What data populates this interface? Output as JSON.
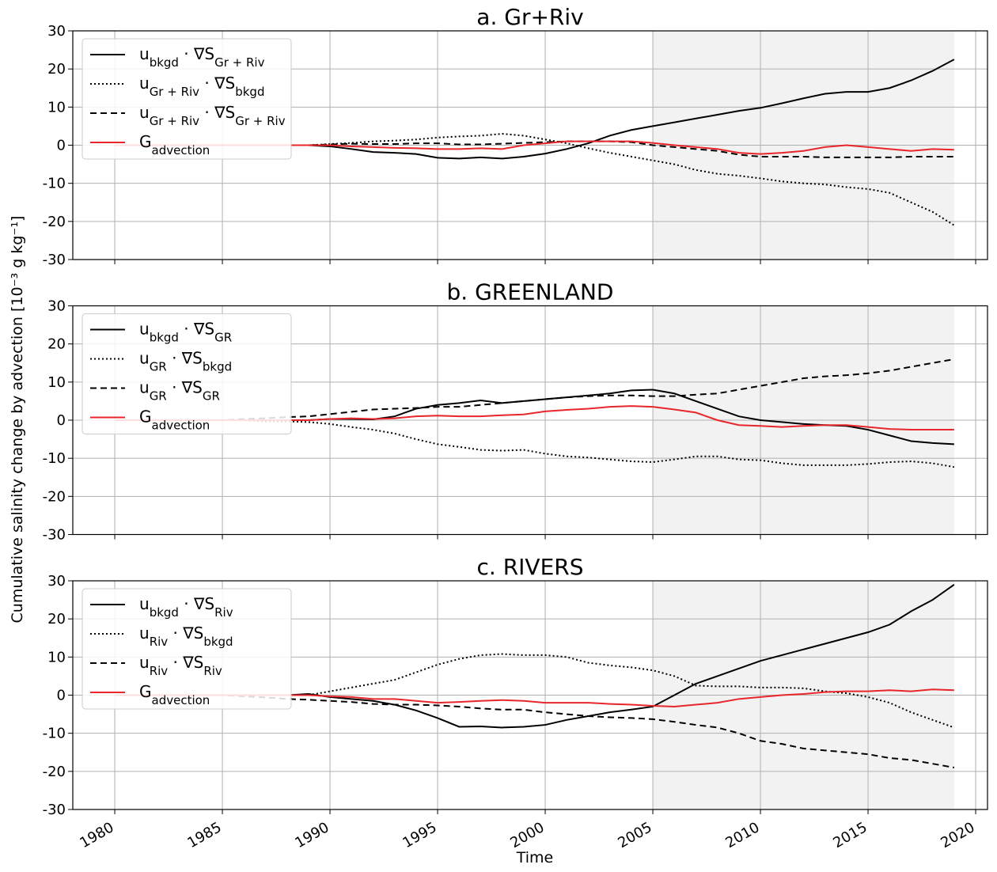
{
  "figure": {
    "ylabel": "Cumulative salinity change by advection [10⁻³ g kg⁻¹]",
    "xlabel": "Time"
  },
  "chart_data": [
    {
      "type": "line",
      "title": "a. Gr+Riv",
      "xlim": [
        1978.05,
        2020.55
      ],
      "xticks": [
        1980,
        1985,
        1990,
        1995,
        2000,
        2005,
        2010,
        2015,
        2020
      ],
      "ylim": [
        -30,
        30
      ],
      "yticks": [
        -30,
        -20,
        -10,
        0,
        10,
        20,
        30
      ],
      "grid": true,
      "legend": "upper left",
      "shade": [
        2005,
        2019
      ],
      "shade_color": "#f2f2f2",
      "x": [
        1980,
        1981,
        1982,
        1983,
        1984,
        1985,
        1986,
        1987,
        1988,
        1989,
        1990,
        1991,
        1992,
        1993,
        1994,
        1995,
        1996,
        1997,
        1998,
        1999,
        2000,
        2001,
        2002,
        2003,
        2004,
        2005,
        2006,
        2007,
        2008,
        2009,
        2010,
        2011,
        2012,
        2013,
        2014,
        2015,
        2016,
        2017,
        2018,
        2019
      ],
      "series": [
        {
          "name": "u_{bkgd} · ∇S_{Gr + Riv}",
          "color": "#000000",
          "linestyle": "solid",
          "values": [
            0,
            0,
            0,
            0,
            0,
            0,
            0,
            0,
            0,
            0,
            -0.3,
            -1,
            -1.8,
            -2,
            -2.3,
            -3.3,
            -3.5,
            -3.2,
            -3.5,
            -3,
            -2.2,
            -1,
            0.5,
            2.5,
            4,
            5,
            6,
            7,
            8,
            9,
            9.8,
            11,
            12.3,
            13.5,
            14,
            14,
            15,
            17,
            19.5,
            22.5
          ]
        },
        {
          "name": "u_{Gr + Riv} · ∇S_{bkgd}",
          "color": "#000000",
          "linestyle": "dotted",
          "values": [
            0,
            0,
            0,
            0,
            0,
            0,
            0,
            0,
            0,
            0,
            0.3,
            0.6,
            1,
            1.2,
            1.5,
            2,
            2.3,
            2.5,
            3,
            2.5,
            1.5,
            0.5,
            -0.8,
            -2,
            -3,
            -4,
            -5,
            -6.5,
            -7.5,
            -8,
            -8.7,
            -9.5,
            -10,
            -10.3,
            -11,
            -11.5,
            -12.5,
            -15,
            -17.5,
            -21
          ]
        },
        {
          "name": "u_{Gr + Riv} · ∇S_{Gr + Riv}",
          "color": "#000000",
          "linestyle": "dashed",
          "values": [
            0,
            0,
            0,
            0,
            0,
            0,
            0,
            0,
            0,
            0,
            0.2,
            0.4,
            0.3,
            0.3,
            0.5,
            0.5,
            0.2,
            0.2,
            0.4,
            0.6,
            0.8,
            1,
            1,
            1,
            0.8,
            0,
            -0.5,
            -1,
            -1.5,
            -2.5,
            -3,
            -3,
            -3,
            -3.2,
            -3.2,
            -3.2,
            -3.2,
            -3,
            -3,
            -3
          ]
        },
        {
          "name": "G_{advection}",
          "color": "#e8262b",
          "linestyle": "solid",
          "values": [
            0,
            0,
            0,
            0,
            0,
            0,
            0,
            0,
            0,
            0,
            0,
            -0.3,
            -0.5,
            -0.7,
            -0.8,
            -1,
            -1,
            -0.8,
            -1,
            0,
            0.5,
            1,
            1,
            1,
            1,
            0.6,
            0,
            -0.5,
            -1,
            -2,
            -2.3,
            -2,
            -1.5,
            -0.5,
            0,
            -0.5,
            -1,
            -1.5,
            -1,
            -1.2
          ]
        }
      ]
    },
    {
      "type": "line",
      "title": "b. GREENLAND",
      "xlim": [
        1978.05,
        2020.55
      ],
      "xticks": [
        1980,
        1985,
        1990,
        1995,
        2000,
        2005,
        2010,
        2015,
        2020
      ],
      "ylim": [
        -30,
        30
      ],
      "yticks": [
        -30,
        -20,
        -10,
        0,
        10,
        20,
        30
      ],
      "grid": true,
      "legend": "upper left",
      "shade": [
        2005,
        2019
      ],
      "shade_color": "#f2f2f2",
      "x": [
        1980,
        1981,
        1982,
        1983,
        1984,
        1985,
        1986,
        1987,
        1988,
        1989,
        1990,
        1991,
        1992,
        1993,
        1994,
        1995,
        1996,
        1997,
        1998,
        1999,
        2000,
        2001,
        2002,
        2003,
        2004,
        2005,
        2006,
        2007,
        2008,
        2009,
        2010,
        2011,
        2012,
        2013,
        2014,
        2015,
        2016,
        2017,
        2018,
        2019
      ],
      "series": [
        {
          "name": "u_{bkgd} · ∇S_{GR}",
          "color": "#000000",
          "linestyle": "solid",
          "values": [
            0,
            0,
            0,
            0,
            0,
            0,
            0,
            0,
            0,
            0,
            0.3,
            0.3,
            0.2,
            1,
            3,
            4,
            4.5,
            5.2,
            4.5,
            5,
            5.5,
            6,
            6.5,
            7,
            7.8,
            8,
            7,
            5,
            3,
            1,
            0,
            -0.5,
            -1,
            -1.3,
            -1.5,
            -2.5,
            -4,
            -5.5,
            -6,
            -6.3
          ]
        },
        {
          "name": "u_{GR} · ∇S_{bkgd}",
          "color": "#000000",
          "linestyle": "dotted",
          "values": [
            0,
            0,
            0,
            0,
            0,
            0,
            0,
            -0.3,
            -0.3,
            -0.5,
            -1,
            -1.8,
            -2.5,
            -3.5,
            -5,
            -6.3,
            -7,
            -7.8,
            -8,
            -7.8,
            -8.8,
            -9.5,
            -9.8,
            -10.3,
            -10.8,
            -11,
            -10.3,
            -9.5,
            -9.5,
            -10.3,
            -10.5,
            -11.3,
            -11.8,
            -11.8,
            -11.8,
            -11.5,
            -11,
            -10.8,
            -11.3,
            -12.3
          ]
        },
        {
          "name": "u_{GR} · ∇S_{GR}",
          "color": "#000000",
          "linestyle": "dashed",
          "values": [
            0,
            0,
            0,
            0,
            0,
            0,
            0.3,
            0.5,
            0.8,
            1,
            1.6,
            2.2,
            2.8,
            3,
            3.2,
            3.5,
            3.5,
            4,
            4.5,
            5,
            5.5,
            6,
            6.3,
            6.5,
            6.5,
            6.3,
            6.3,
            6.7,
            7,
            8,
            9,
            10,
            11,
            11.5,
            11.8,
            12.3,
            13,
            14,
            15,
            16
          ]
        },
        {
          "name": "G_{advection}",
          "color": "#e8262b",
          "linestyle": "solid",
          "values": [
            0,
            0,
            0,
            0,
            0,
            0,
            0,
            0,
            0,
            0,
            0.3,
            0.5,
            0.3,
            0.5,
            1,
            1.2,
            1,
            1,
            1.3,
            1.5,
            2.3,
            2.7,
            3,
            3.5,
            3.7,
            3.5,
            2.8,
            2,
            0,
            -1.3,
            -1.5,
            -1.8,
            -1.5,
            -1.3,
            -1.3,
            -1.8,
            -2.3,
            -2.5,
            -2.5,
            -2.5
          ]
        }
      ]
    },
    {
      "type": "line",
      "title": "c. RIVERS",
      "xlim": [
        1978.05,
        2020.55
      ],
      "xticks": [
        1980,
        1985,
        1990,
        1995,
        2000,
        2005,
        2010,
        2015,
        2020
      ],
      "ylim": [
        -30,
        30
      ],
      "yticks": [
        -30,
        -20,
        -10,
        0,
        10,
        20,
        30
      ],
      "grid": true,
      "legend": "upper left",
      "shade": [
        2005,
        2019
      ],
      "shade_color": "#f2f2f2",
      "x": [
        1980,
        1981,
        1982,
        1983,
        1984,
        1985,
        1986,
        1987,
        1988,
        1989,
        1990,
        1991,
        1992,
        1993,
        1994,
        1995,
        1996,
        1997,
        1998,
        1999,
        2000,
        2001,
        2002,
        2003,
        2004,
        2005,
        2006,
        2007,
        2008,
        2009,
        2010,
        2011,
        2012,
        2013,
        2014,
        2015,
        2016,
        2017,
        2018,
        2019
      ],
      "series": [
        {
          "name": "u_{bkgd} · ∇S_{Riv}",
          "color": "#000000",
          "linestyle": "solid",
          "values": [
            0,
            0,
            0,
            0,
            0,
            0,
            0,
            0,
            0,
            0.3,
            -0.5,
            -1,
            -1.5,
            -2.5,
            -4,
            -6,
            -8.3,
            -8.2,
            -8.5,
            -8.3,
            -7.8,
            -6.5,
            -5.5,
            -4.5,
            -3.8,
            -3,
            0,
            3,
            5,
            7,
            9,
            10.5,
            12,
            13.5,
            15,
            16.5,
            18.5,
            22,
            25,
            29
          ]
        },
        {
          "name": "u_{Riv} · ∇S_{bkgd}",
          "color": "#000000",
          "linestyle": "dotted",
          "values": [
            0,
            0,
            0,
            0,
            0,
            0,
            0,
            0,
            0,
            0,
            1,
            2,
            3,
            4,
            6,
            8,
            9.5,
            10.5,
            10.8,
            10.5,
            10.5,
            10,
            8.5,
            7.8,
            7.3,
            6.5,
            5,
            2.5,
            2.3,
            2.3,
            2,
            2,
            1.8,
            1,
            0.5,
            -0.5,
            -2,
            -4.5,
            -6.5,
            -8.5
          ]
        },
        {
          "name": "u_{Riv} · ∇S_{Riv}",
          "color": "#000000",
          "linestyle": "dashed",
          "values": [
            0,
            0,
            0,
            0,
            0,
            0,
            -0.3,
            -0.6,
            -1,
            -1.2,
            -1.5,
            -1.8,
            -2.3,
            -2.5,
            -2.5,
            -2.7,
            -3,
            -3.5,
            -3.8,
            -3.8,
            -4.5,
            -5,
            -5.5,
            -5.8,
            -6,
            -6.3,
            -7,
            -7.8,
            -8.5,
            -10,
            -12,
            -12.8,
            -14,
            -14.5,
            -15,
            -15.5,
            -16.5,
            -17,
            -18,
            -19
          ]
        },
        {
          "name": "G_{advection}",
          "color": "#e8262b",
          "linestyle": "solid",
          "values": [
            0,
            0,
            0,
            0,
            0,
            0,
            0,
            0,
            0,
            0,
            -0.3,
            -0.5,
            -1,
            -1,
            -1.5,
            -2,
            -1.8,
            -1.5,
            -1.3,
            -1.5,
            -2,
            -2,
            -2,
            -2.3,
            -2.5,
            -2.8,
            -3,
            -2.5,
            -2,
            -1,
            -0.5,
            0,
            0.3,
            0.8,
            1,
            1,
            1.3,
            1,
            1.5,
            1.3
          ]
        }
      ]
    }
  ]
}
